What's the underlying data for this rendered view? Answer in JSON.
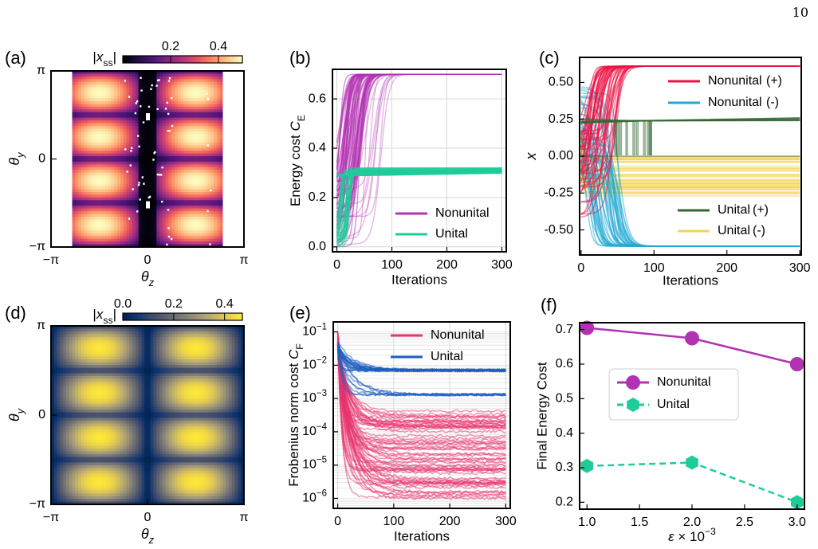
{
  "page": {
    "number": "10"
  },
  "chart_data": [
    {
      "id": "a",
      "panel_label": "(a)",
      "type": "heatmap",
      "colormap": "magma",
      "colorbar": {
        "label": "|x_ss|",
        "ticks": [
          0.2,
          0.4
        ],
        "range": [
          0.0,
          0.5
        ]
      },
      "xlabel": "θz",
      "ylabel": "θy",
      "xlim": [
        -3.14159,
        3.14159
      ],
      "ylim": [
        -3.14159,
        3.14159
      ],
      "xtick_labels": [
        "−π",
        "0",
        "π"
      ],
      "ytick_labels": [
        "−π",
        "0",
        "π"
      ],
      "notes": "Data present for θz in approx [-2.4, 2.4]; white background outside; black band near θz≈0 with scattered white points"
    },
    {
      "id": "b",
      "panel_label": "(b)",
      "type": "line",
      "xlabel": "Iterations",
      "ylabel": "Energy cost C_E",
      "xlim": [
        -8,
        308
      ],
      "ylim": [
        -0.02,
        0.72
      ],
      "xticks": [
        0,
        100,
        200,
        300
      ],
      "yticks": [
        0.0,
        0.2,
        0.4,
        0.6
      ],
      "grid": true,
      "legend": "bottom-right",
      "series": [
        {
          "name": "Nonunital",
          "color": "#b233b2",
          "final_value": 0.7,
          "start_range": [
            0.0,
            0.3
          ]
        },
        {
          "name": "Unital",
          "color": "#1fcc99",
          "final_value": 0.31,
          "start_range": [
            0.0,
            0.3
          ]
        }
      ]
    },
    {
      "id": "c",
      "panel_label": "(c)",
      "type": "line",
      "xlabel": "Iterations",
      "ylabel": "x",
      "xlim": [
        -2,
        302
      ],
      "ylim": [
        -0.67,
        0.67
      ],
      "xticks": [
        0,
        100,
        200,
        300
      ],
      "yticks": [
        -0.5,
        -0.25,
        0.0,
        0.25,
        0.5
      ],
      "grid": false,
      "legend": "top-right and bottom-right",
      "series": [
        {
          "name": "Nonunital",
          "sign": "(+)",
          "color": "#ee1144",
          "final_value": 0.61
        },
        {
          "name": "Nonunital",
          "sign": "(-)",
          "color": "#22aad4",
          "final_value": -0.61
        },
        {
          "name": "Unital",
          "sign": "(+)",
          "color": "#336633",
          "final_value": 0.26
        },
        {
          "name": "Unital",
          "sign": "(-)",
          "color": "#f2d64d",
          "final_range": [
            -0.27,
            0.0
          ]
        }
      ]
    },
    {
      "id": "d",
      "panel_label": "(d)",
      "type": "heatmap",
      "colormap": "cividis",
      "colorbar": {
        "label": "|x_ss|",
        "ticks": [
          0.0,
          0.2,
          0.4
        ],
        "range": [
          0.0,
          0.47
        ]
      },
      "xlabel": "θz",
      "ylabel": "θy",
      "xlim": [
        -3.14159,
        3.14159
      ],
      "ylim": [
        -3.14159,
        3.14159
      ],
      "xtick_labels": [
        "−π",
        "0",
        "π"
      ],
      "ytick_labels": [
        "−π",
        "0",
        "π"
      ]
    },
    {
      "id": "e",
      "panel_label": "(e)",
      "type": "line",
      "yscale": "log",
      "xlabel": "Iterations",
      "ylabel": "Frobenius norm cost C_F",
      "xlim": [
        -8,
        308
      ],
      "ylim_log10": [
        -6.3,
        -0.7
      ],
      "xticks": [
        0,
        100,
        200,
        300
      ],
      "ytick_exponents": [
        -1,
        -2,
        -3,
        -4,
        -5,
        -6
      ],
      "grid": true,
      "legend": "top-right",
      "series": [
        {
          "name": "Nonunital",
          "color": "#e8336d",
          "final_range": [
            1e-06,
            0.0005
          ]
        },
        {
          "name": "Unital",
          "color": "#1f5fbf",
          "final_values": [
            0.007,
            0.0013
          ]
        }
      ]
    },
    {
      "id": "f",
      "panel_label": "(f)",
      "type": "line",
      "xlabel": "ε × 10⁻³",
      "ylabel": "Final Energy Cost",
      "xlim": [
        0.93,
        3.07
      ],
      "ylim": [
        0.18,
        0.72
      ],
      "xticks": [
        1.0,
        1.5,
        2.0,
        2.5,
        3.0
      ],
      "yticks": [
        0.2,
        0.3,
        0.4,
        0.5,
        0.6,
        0.7
      ],
      "legend": "center-left",
      "x": [
        1.0,
        2.0,
        3.0
      ],
      "series": [
        {
          "name": "Nonunital",
          "color": "#b233b2",
          "marker": "circle",
          "linestyle": "solid",
          "values": [
            0.705,
            0.675,
            0.6
          ]
        },
        {
          "name": "Unital",
          "color": "#1fcc99",
          "marker": "hexagon",
          "linestyle": "dashed",
          "values": [
            0.305,
            0.315,
            0.2
          ]
        }
      ]
    }
  ]
}
